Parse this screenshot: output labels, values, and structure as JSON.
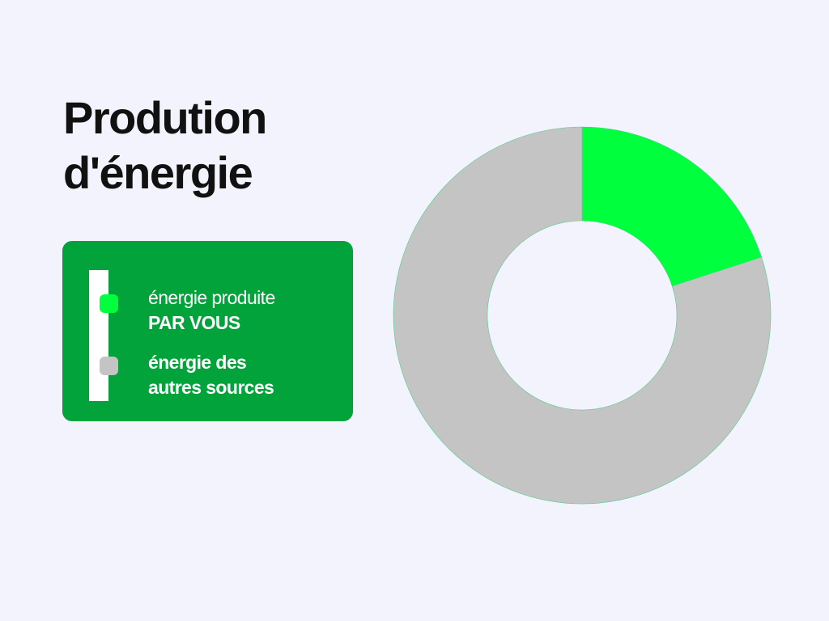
{
  "title": {
    "line1": "Prodution",
    "line2": "d'énergie"
  },
  "chart_data": {
    "type": "pie",
    "style": "donut",
    "series": [
      {
        "name": "énergie produite PAR VOUS",
        "value": 20,
        "color": "#00ff3c"
      },
      {
        "name": "énergie des autres sources",
        "value": 80,
        "color": "#c4c4c4"
      }
    ],
    "legend": "left",
    "data_labels": false
  },
  "legend": {
    "items": [
      {
        "line1": "énergie produite",
        "line2": "PAR VOUS",
        "color": "#00ff3c"
      },
      {
        "line1": "énergie des",
        "line2": "autres sources",
        "color": "#c4c4c4"
      }
    ]
  },
  "colors": {
    "background": "#f3f3fd",
    "legend_box": "#02a33a",
    "title": "#111111"
  }
}
